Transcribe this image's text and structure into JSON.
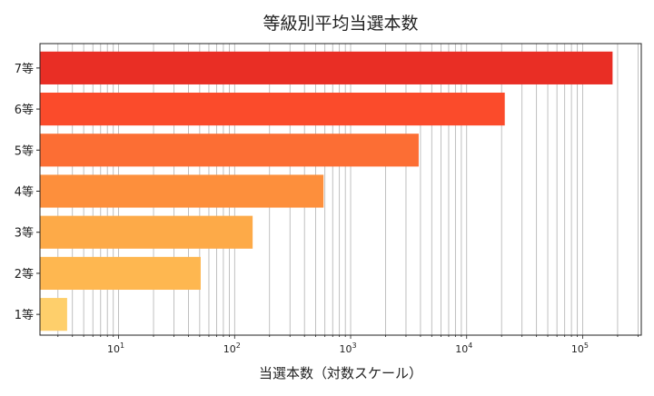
{
  "chart_data": {
    "type": "bar",
    "orientation": "horizontal",
    "title": "等級別平均当選本数",
    "xlabel": "当選本数（対数スケール）",
    "ylabel": "",
    "x_scale": "log",
    "xlim": [
      2.1,
      320000
    ],
    "grid": "x (major and minor)",
    "categories": [
      "1等",
      "2等",
      "3等",
      "4等",
      "5等",
      "6等",
      "7等"
    ],
    "values": [
      3.6,
      51,
      143,
      584,
      3860,
      21300,
      181000
    ],
    "colors": [
      "#fecf6b",
      "#feb750",
      "#fdaa48",
      "#fd8f3c",
      "#fc6e34",
      "#fb4b2b",
      "#e92e25"
    ],
    "x_ticks": [
      {
        "value": 10,
        "base": "10",
        "exp": "1"
      },
      {
        "value": 100,
        "base": "10",
        "exp": "2"
      },
      {
        "value": 1000,
        "base": "10",
        "exp": "3"
      },
      {
        "value": 10000,
        "base": "10",
        "exp": "4"
      },
      {
        "value": 100000,
        "base": "10",
        "exp": "5"
      }
    ]
  }
}
